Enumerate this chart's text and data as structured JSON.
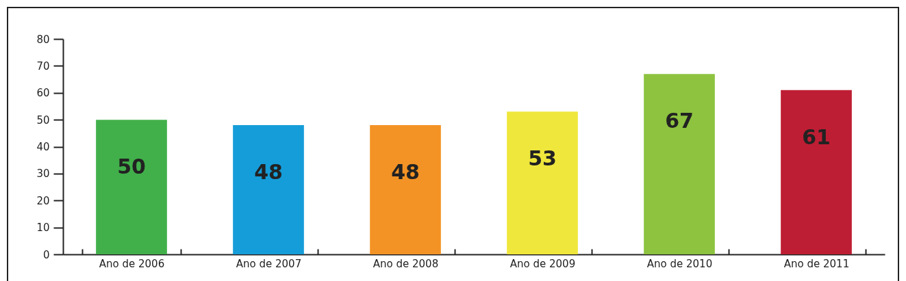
{
  "chart_data": {
    "type": "bar",
    "categories": [
      "Ano de 2006",
      "Ano de 2007",
      "Ano de 2008",
      "Ano de 2009",
      "Ano de 2010",
      "Ano de 2011"
    ],
    "values": [
      50,
      48,
      48,
      53,
      67,
      61
    ],
    "colors": [
      "#41b04a",
      "#159dd9",
      "#f39325",
      "#efe73c",
      "#8dc33f",
      "#be1e34"
    ],
    "ylim": [
      0,
      80
    ],
    "yticks": [
      0,
      10,
      20,
      30,
      40,
      50,
      60,
      70,
      80
    ],
    "data_labels": true,
    "grid": false
  }
}
